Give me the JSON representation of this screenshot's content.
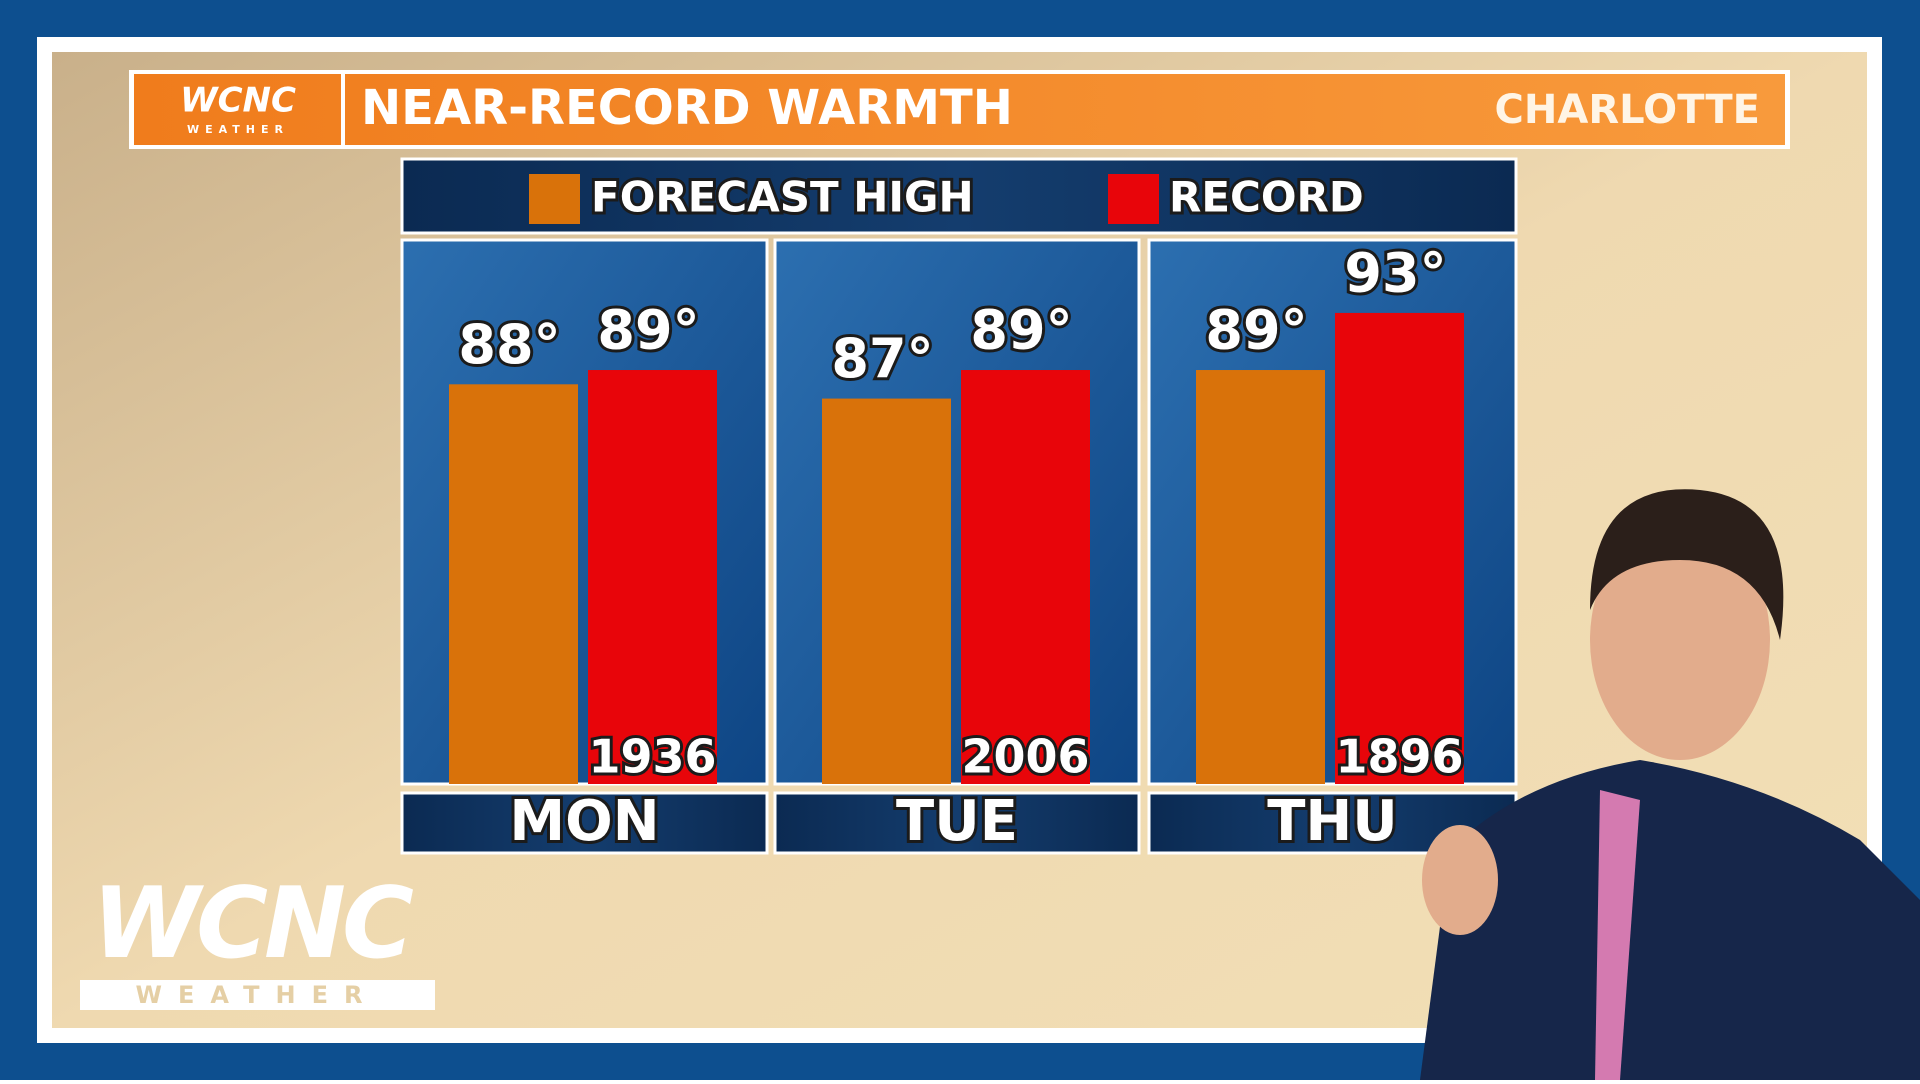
{
  "brand": {
    "name": "WCNC",
    "sub": "WEATHER"
  },
  "chart_data": {
    "type": "bar",
    "title": "NEAR-RECORD WARMTH",
    "location": "CHARLOTTE",
    "categories": [
      "MON",
      "TUE",
      "THU"
    ],
    "series": [
      {
        "name": "FORECAST HIGH",
        "color": "#d9720a",
        "values": [
          88,
          87,
          89
        ],
        "value_labels": [
          "88°",
          "87°",
          "89°"
        ]
      },
      {
        "name": "RECORD",
        "color": "#e8050a",
        "values": [
          89,
          89,
          93
        ],
        "value_labels": [
          "89°",
          "89°",
          "93°"
        ],
        "years": [
          "1936",
          "2006",
          "1896"
        ]
      }
    ],
    "ylim": [
      60,
      100
    ]
  }
}
